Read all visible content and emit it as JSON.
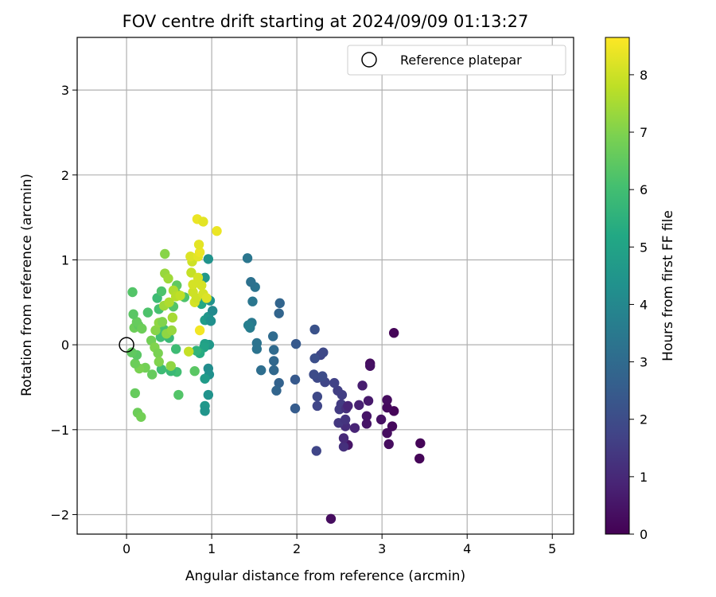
{
  "chart_data": {
    "type": "scatter",
    "title": "FOV centre drift starting at 2024/09/09 01:13:27",
    "xlabel": "Angular distance from reference (arcmin)",
    "ylabel": "Rotation from reference (arcmin)",
    "xlim": [
      -0.58,
      5.25
    ],
    "ylim": [
      -2.23,
      3.62
    ],
    "xticks": [
      "0",
      "1",
      "2",
      "3",
      "4",
      "5"
    ],
    "yticks": [
      "−2",
      "−1",
      "0",
      "1",
      "2",
      "3"
    ],
    "grid": true,
    "legend": {
      "placement": "top-right",
      "entries": [
        "Reference platepar"
      ]
    },
    "reference_point": {
      "x": 0,
      "y": 0
    },
    "colorbar": {
      "label": "Hours from first FF file",
      "colormap": "viridis",
      "range": [
        0,
        8.65
      ],
      "ticks": [
        "0",
        "1",
        "2",
        "3",
        "4",
        "5",
        "6",
        "7",
        "8"
      ]
    },
    "points": [
      {
        "x": 2.4,
        "y": -2.05,
        "c": 0.3
      },
      {
        "x": 3.44,
        "y": -1.34,
        "c": 0.1
      },
      {
        "x": 3.45,
        "y": -1.16,
        "c": 0.1
      },
      {
        "x": 3.08,
        "y": -1.17,
        "c": 0.3
      },
      {
        "x": 2.6,
        "y": -1.18,
        "c": 0.5
      },
      {
        "x": 3.06,
        "y": -1.04,
        "c": 0.3
      },
      {
        "x": 3.12,
        "y": -0.96,
        "c": 0.2
      },
      {
        "x": 3.14,
        "y": -0.78,
        "c": 0.1
      },
      {
        "x": 3.06,
        "y": -0.74,
        "c": 0.2
      },
      {
        "x": 3.06,
        "y": -0.65,
        "c": 0.3
      },
      {
        "x": 2.99,
        "y": -0.88,
        "c": 0.4
      },
      {
        "x": 2.82,
        "y": -0.93,
        "c": 0.5
      },
      {
        "x": 2.82,
        "y": -0.84,
        "c": 0.5
      },
      {
        "x": 2.84,
        "y": -0.66,
        "c": 0.6
      },
      {
        "x": 2.77,
        "y": -0.48,
        "c": 0.7
      },
      {
        "x": 2.86,
        "y": -0.22,
        "c": 0.3
      },
      {
        "x": 2.86,
        "y": -0.25,
        "c": 0.4
      },
      {
        "x": 3.14,
        "y": 0.14,
        "c": 0.1
      },
      {
        "x": 2.73,
        "y": -0.71,
        "c": 0.8
      },
      {
        "x": 2.68,
        "y": -0.98,
        "c": 0.9
      },
      {
        "x": 2.55,
        "y": -1.2,
        "c": 1.2
      },
      {
        "x": 2.55,
        "y": -1.1,
        "c": 1.0
      },
      {
        "x": 2.57,
        "y": -0.96,
        "c": 1.1
      },
      {
        "x": 2.49,
        "y": -0.92,
        "c": 1.4
      },
      {
        "x": 2.57,
        "y": -0.88,
        "c": 1.3
      },
      {
        "x": 2.5,
        "y": -0.76,
        "c": 1.5
      },
      {
        "x": 2.52,
        "y": -0.7,
        "c": 1.5
      },
      {
        "x": 2.58,
        "y": -0.75,
        "c": 1.2
      },
      {
        "x": 2.6,
        "y": -0.72,
        "c": 0.9
      },
      {
        "x": 2.53,
        "y": -0.59,
        "c": 1.6
      },
      {
        "x": 2.48,
        "y": -0.54,
        "c": 1.6
      },
      {
        "x": 2.44,
        "y": -0.45,
        "c": 1.7
      },
      {
        "x": 2.33,
        "y": -0.44,
        "c": 1.8
      },
      {
        "x": 2.24,
        "y": -0.61,
        "c": 1.9
      },
      {
        "x": 2.24,
        "y": -0.72,
        "c": 1.8
      },
      {
        "x": 2.23,
        "y": -1.25,
        "c": 1.8
      },
      {
        "x": 2.24,
        "y": -0.39,
        "c": 1.9
      },
      {
        "x": 2.2,
        "y": -0.35,
        "c": 2.0
      },
      {
        "x": 2.3,
        "y": -0.37,
        "c": 2.0
      },
      {
        "x": 2.28,
        "y": -0.12,
        "c": 1.8
      },
      {
        "x": 2.31,
        "y": -0.09,
        "c": 1.9
      },
      {
        "x": 2.21,
        "y": -0.16,
        "c": 2.1
      },
      {
        "x": 2.21,
        "y": 0.18,
        "c": 2.2
      },
      {
        "x": 1.99,
        "y": 0.01,
        "c": 2.4
      },
      {
        "x": 1.98,
        "y": -0.41,
        "c": 2.4
      },
      {
        "x": 1.98,
        "y": -0.75,
        "c": 2.5
      },
      {
        "x": 1.79,
        "y": -0.45,
        "c": 2.7
      },
      {
        "x": 1.76,
        "y": -0.54,
        "c": 2.8
      },
      {
        "x": 1.73,
        "y": -0.3,
        "c": 2.9
      },
      {
        "x": 1.73,
        "y": -0.19,
        "c": 2.9
      },
      {
        "x": 1.73,
        "y": -0.06,
        "c": 3.0
      },
      {
        "x": 1.72,
        "y": 0.1,
        "c": 3.0
      },
      {
        "x": 1.79,
        "y": 0.37,
        "c": 2.8
      },
      {
        "x": 1.8,
        "y": 0.49,
        "c": 2.8
      },
      {
        "x": 1.58,
        "y": -0.3,
        "c": 3.1
      },
      {
        "x": 1.53,
        "y": -0.05,
        "c": 3.3
      },
      {
        "x": 1.53,
        "y": 0.02,
        "c": 3.3
      },
      {
        "x": 1.47,
        "y": 0.26,
        "c": 3.5
      },
      {
        "x": 1.45,
        "y": 0.2,
        "c": 3.6
      },
      {
        "x": 1.43,
        "y": 0.23,
        "c": 3.7
      },
      {
        "x": 1.48,
        "y": 0.51,
        "c": 3.4
      },
      {
        "x": 1.51,
        "y": 0.68,
        "c": 3.3
      },
      {
        "x": 1.46,
        "y": 0.74,
        "c": 3.2
      },
      {
        "x": 1.42,
        "y": 1.02,
        "c": 3.4
      },
      {
        "x": 0.96,
        "y": -0.28,
        "c": 4.2
      },
      {
        "x": 0.97,
        "y": -0.35,
        "c": 4.3
      },
      {
        "x": 0.96,
        "y": -0.59,
        "c": 4.4
      },
      {
        "x": 0.92,
        "y": -0.72,
        "c": 4.6
      },
      {
        "x": 0.92,
        "y": -0.78,
        "c": 4.5
      },
      {
        "x": 0.92,
        "y": -0.4,
        "c": 4.7
      },
      {
        "x": 0.97,
        "y": 0.0,
        "c": 4.6
      },
      {
        "x": 0.92,
        "y": 0.01,
        "c": 4.9
      },
      {
        "x": 0.91,
        "y": -0.03,
        "c": 5.0
      },
      {
        "x": 0.92,
        "y": 0.29,
        "c": 4.8
      },
      {
        "x": 0.96,
        "y": 0.33,
        "c": 4.5
      },
      {
        "x": 0.99,
        "y": 0.28,
        "c": 4.3
      },
      {
        "x": 1.01,
        "y": 0.4,
        "c": 4.1
      },
      {
        "x": 0.98,
        "y": 0.52,
        "c": 4.4
      },
      {
        "x": 0.91,
        "y": 0.54,
        "c": 4.8
      },
      {
        "x": 0.92,
        "y": 0.79,
        "c": 4.6
      },
      {
        "x": 0.96,
        "y": 1.01,
        "c": 4.4
      },
      {
        "x": 0.88,
        "y": 0.48,
        "c": 5.2
      },
      {
        "x": 0.86,
        "y": -0.1,
        "c": 5.3
      },
      {
        "x": 0.82,
        "y": -0.07,
        "c": 5.6
      },
      {
        "x": 0.8,
        "y": -0.31,
        "c": 6.4
      },
      {
        "x": 0.61,
        "y": -0.59,
        "c": 6.3
      },
      {
        "x": 0.59,
        "y": -0.32,
        "c": 6.0
      },
      {
        "x": 0.52,
        "y": -0.31,
        "c": 5.8
      },
      {
        "x": 0.58,
        "y": -0.05,
        "c": 5.9
      },
      {
        "x": 0.5,
        "y": 0.08,
        "c": 5.8
      },
      {
        "x": 0.41,
        "y": -0.29,
        "c": 5.9
      },
      {
        "x": 0.4,
        "y": 0.09,
        "c": 6.0
      },
      {
        "x": 0.44,
        "y": 0.18,
        "c": 6.1
      },
      {
        "x": 0.38,
        "y": 0.42,
        "c": 6.1
      },
      {
        "x": 0.36,
        "y": 0.55,
        "c": 5.9
      },
      {
        "x": 0.41,
        "y": 0.63,
        "c": 6.2
      },
      {
        "x": 0.55,
        "y": 0.45,
        "c": 6.3
      },
      {
        "x": 0.59,
        "y": 0.6,
        "c": 6.4
      },
      {
        "x": 0.59,
        "y": 0.7,
        "c": 6.5
      },
      {
        "x": 0.68,
        "y": 0.56,
        "c": 6.2
      },
      {
        "x": 0.45,
        "y": 1.07,
        "c": 7.1
      },
      {
        "x": 0.3,
        "y": -0.35,
        "c": 6.6
      },
      {
        "x": 0.22,
        "y": -0.27,
        "c": 6.8
      },
      {
        "x": 0.15,
        "y": -0.28,
        "c": 6.9
      },
      {
        "x": 0.1,
        "y": -0.22,
        "c": 6.7
      },
      {
        "x": 0.12,
        "y": -0.12,
        "c": 6.4
      },
      {
        "x": 0.06,
        "y": -0.09,
        "c": 6.5
      },
      {
        "x": 0.1,
        "y": -0.57,
        "c": 6.6
      },
      {
        "x": 0.13,
        "y": -0.8,
        "c": 6.7
      },
      {
        "x": 0.17,
        "y": -0.85,
        "c": 6.8
      },
      {
        "x": 0.09,
        "y": 0.2,
        "c": 6.7
      },
      {
        "x": 0.14,
        "y": 0.23,
        "c": 6.5
      },
      {
        "x": 0.12,
        "y": 0.27,
        "c": 6.6
      },
      {
        "x": 0.18,
        "y": 0.19,
        "c": 6.7
      },
      {
        "x": 0.08,
        "y": 0.36,
        "c": 6.4
      },
      {
        "x": 0.07,
        "y": 0.62,
        "c": 6.3
      },
      {
        "x": 0.25,
        "y": 0.38,
        "c": 6.2
      },
      {
        "x": 0.29,
        "y": 0.05,
        "c": 6.8
      },
      {
        "x": 0.33,
        "y": -0.03,
        "c": 7.0
      },
      {
        "x": 0.37,
        "y": -0.1,
        "c": 6.9
      },
      {
        "x": 0.38,
        "y": -0.2,
        "c": 7.0
      },
      {
        "x": 0.34,
        "y": 0.17,
        "c": 7.1
      },
      {
        "x": 0.38,
        "y": 0.26,
        "c": 7.2
      },
      {
        "x": 0.42,
        "y": 0.27,
        "c": 7.0
      },
      {
        "x": 0.47,
        "y": 0.13,
        "c": 7.2
      },
      {
        "x": 0.53,
        "y": 0.17,
        "c": 7.3
      },
      {
        "x": 0.52,
        "y": -0.25,
        "c": 7.2
      },
      {
        "x": 0.54,
        "y": 0.32,
        "c": 7.5
      },
      {
        "x": 0.44,
        "y": 0.46,
        "c": 7.4
      },
      {
        "x": 0.5,
        "y": 0.5,
        "c": 7.6
      },
      {
        "x": 0.45,
        "y": 0.84,
        "c": 7.3
      },
      {
        "x": 0.49,
        "y": 0.78,
        "c": 7.4
      },
      {
        "x": 0.55,
        "y": 0.64,
        "c": 7.6
      },
      {
        "x": 0.58,
        "y": 0.57,
        "c": 7.7
      },
      {
        "x": 0.63,
        "y": 0.58,
        "c": 7.8
      },
      {
        "x": 0.73,
        "y": -0.08,
        "c": 7.9
      },
      {
        "x": 0.78,
        "y": 0.62,
        "c": 8.0
      },
      {
        "x": 0.8,
        "y": 0.5,
        "c": 8.1
      },
      {
        "x": 0.78,
        "y": 0.71,
        "c": 8.1
      },
      {
        "x": 0.76,
        "y": 0.85,
        "c": 7.9
      },
      {
        "x": 0.77,
        "y": 0.98,
        "c": 8.0
      },
      {
        "x": 0.75,
        "y": 1.04,
        "c": 8.2
      },
      {
        "x": 0.84,
        "y": 1.04,
        "c": 8.3
      },
      {
        "x": 0.86,
        "y": 1.09,
        "c": 8.4
      },
      {
        "x": 0.85,
        "y": 1.18,
        "c": 8.3
      },
      {
        "x": 0.83,
        "y": 1.48,
        "c": 8.4
      },
      {
        "x": 0.9,
        "y": 1.45,
        "c": 8.3
      },
      {
        "x": 1.06,
        "y": 1.34,
        "c": 8.4
      },
      {
        "x": 0.82,
        "y": 0.55,
        "c": 8.0
      },
      {
        "x": 0.84,
        "y": 0.79,
        "c": 8.1
      },
      {
        "x": 0.88,
        "y": 0.7,
        "c": 8.1
      },
      {
        "x": 0.9,
        "y": 0.6,
        "c": 8.1
      },
      {
        "x": 0.94,
        "y": 0.55,
        "c": 8.2
      },
      {
        "x": 0.86,
        "y": 0.17,
        "c": 8.5
      }
    ]
  }
}
